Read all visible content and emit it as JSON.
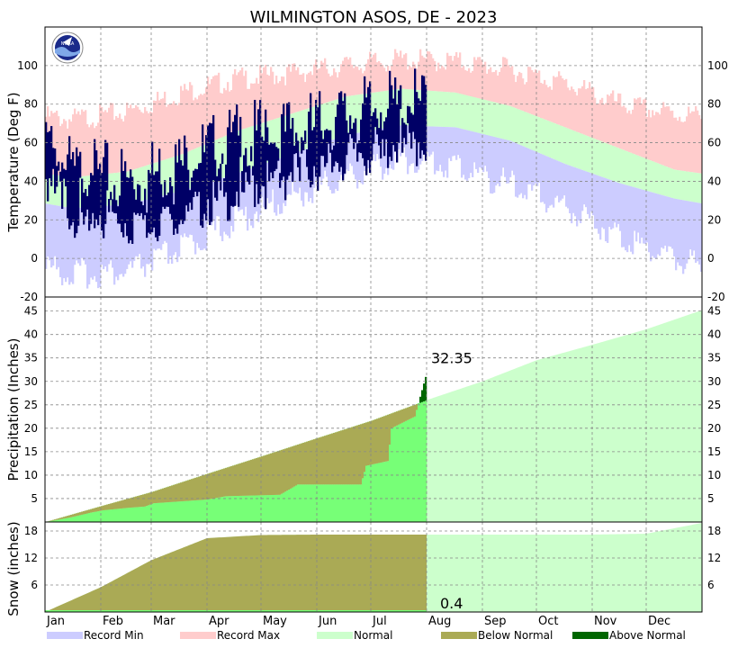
{
  "title": "WILMINGTON   ASOS, DE - 2023",
  "logo_text": "NOAA",
  "colors": {
    "record_min": "#ccccff",
    "record_max": "#ffcccc",
    "normal": "#ccffcc",
    "observed_temp": "#000066",
    "below_normal": "#aaaa55",
    "above_normal": "#006600",
    "observed_precip": "#77ff77",
    "grid": "#888888"
  },
  "chart_data": [
    {
      "type": "area",
      "panel": "temperature",
      "ylabel": "Temperature (Deg F)",
      "ylim": [
        -20,
        120
      ],
      "yticks": [
        -20,
        0,
        20,
        40,
        60,
        80,
        100
      ],
      "x_unit": "day of year",
      "normal_high_monthly": [
        42,
        45,
        54,
        66,
        75,
        84,
        88,
        86,
        79,
        68,
        57,
        46
      ],
      "normal_low_monthly": [
        26,
        28,
        35,
        44,
        54,
        64,
        69,
        68,
        61,
        49,
        39,
        31
      ],
      "record_high_monthly": [
        72,
        76,
        86,
        93,
        96,
        100,
        103,
        102,
        98,
        91,
        80,
        75
      ],
      "record_low_monthly": [
        -8,
        -7,
        5,
        20,
        32,
        42,
        52,
        48,
        38,
        27,
        12,
        0
      ],
      "observed_through_day": 212,
      "observed_high_monthly": [
        52,
        50,
        58,
        70,
        74,
        82,
        88
      ],
      "observed_low_monthly": [
        35,
        28,
        36,
        44,
        54,
        62,
        70
      ],
      "grid": true
    },
    {
      "type": "area",
      "panel": "precipitation",
      "ylabel": "Precipitation (Inches)",
      "ylim": [
        0,
        48
      ],
      "yticks": [
        5,
        10,
        15,
        20,
        25,
        30,
        35,
        40,
        45
      ],
      "annotation": "32.35",
      "normal_cumulative_month_start": [
        0,
        3.4,
        6.4,
        10.3,
        14.0,
        17.9,
        21.6,
        26.0,
        30.0,
        34.5,
        37.8,
        41.1,
        45.2
      ],
      "observed_cumulative_points": [
        [
          0,
          0
        ],
        [
          14,
          1.0
        ],
        [
          25,
          2.0
        ],
        [
          32,
          2.5
        ],
        [
          45,
          3.0
        ],
        [
          55,
          3.3
        ],
        [
          60,
          4.0
        ],
        [
          90,
          4.8
        ],
        [
          100,
          5.5
        ],
        [
          130,
          5.8
        ],
        [
          140,
          8.0
        ],
        [
          175,
          8.0
        ],
        [
          178,
          12.0
        ],
        [
          190,
          13.0
        ],
        [
          192,
          20.0
        ],
        [
          205,
          22.5
        ],
        [
          212,
          32.35
        ]
      ],
      "grid": true
    },
    {
      "type": "area",
      "panel": "snow",
      "ylabel": "Snow (inches)",
      "ylim": [
        0,
        20
      ],
      "yticks": [
        6,
        12,
        18
      ],
      "annotation": "0.4",
      "normal_cumulative_month_start": [
        0,
        5.5,
        11.5,
        16.4,
        17.1,
        17.2,
        17.2,
        17.2,
        17.2,
        17.2,
        17.2,
        17.4,
        19.8
      ],
      "observed_total": 0.4,
      "observed_through_day": 212,
      "grid": true
    }
  ],
  "x_axis": {
    "months": [
      "Jan",
      "Feb",
      "Mar",
      "Apr",
      "May",
      "Jun",
      "Jul",
      "Aug",
      "Sep",
      "Oct",
      "Nov",
      "Dec"
    ]
  },
  "legend": [
    {
      "label": "Record Min",
      "color": "#ccccff"
    },
    {
      "label": "Record Max",
      "color": "#ffcccc"
    },
    {
      "label": "Normal",
      "color": "#ccffcc"
    },
    {
      "label": "Below Normal",
      "color": "#aaaa55"
    },
    {
      "label": "Above Normal",
      "color": "#006600"
    }
  ]
}
